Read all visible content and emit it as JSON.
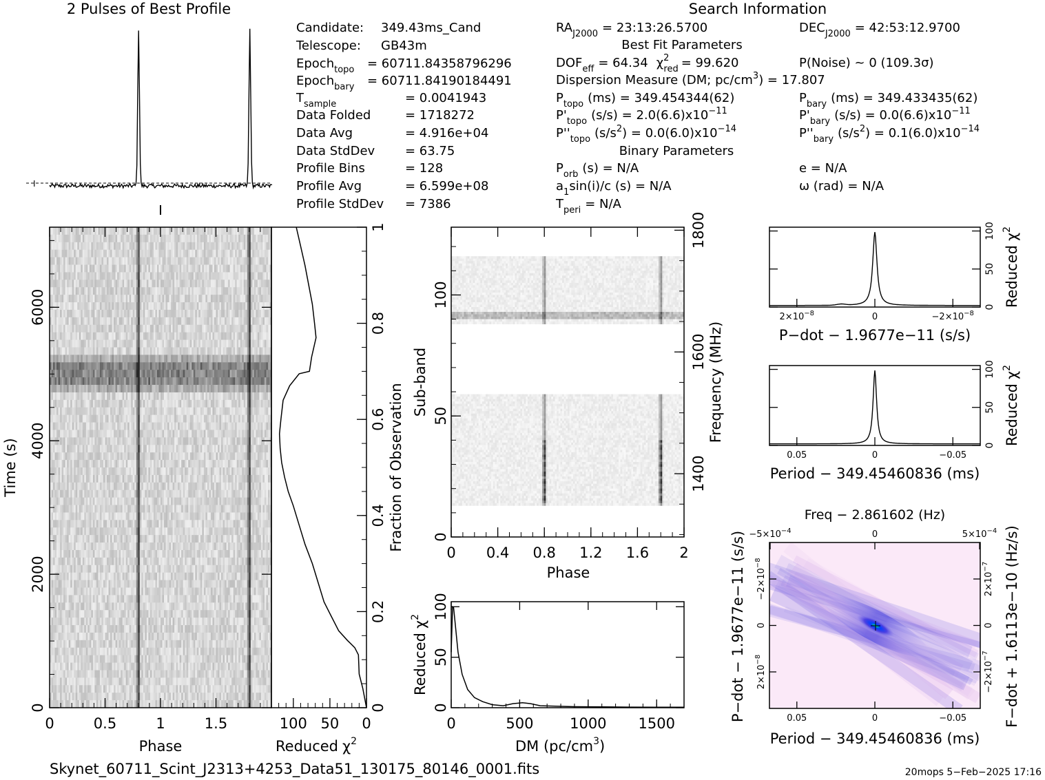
{
  "title": "2 Pulses of Best Profile",
  "search_info": {
    "heading": "Search Information",
    "candidate_label": "Candidate:",
    "candidate": "349.43ms_Cand",
    "telescope_label": "Telescope:",
    "telescope": "GB43m",
    "epoch_topo_label": "Epoch",
    "epoch_topo_sub": "topo",
    "epoch_topo": "= 60711.84358796296",
    "epoch_bary_label": "Epoch",
    "epoch_bary_sub": "bary",
    "epoch_bary": "= 60711.84190184491",
    "tsample_label": "T",
    "tsample_sub": "sample",
    "tsample": "=   0.0041943",
    "folded_label": "Data Folded",
    "folded": "=   1718272",
    "avg_label": "Data Avg",
    "avg": "=   4.916e+04",
    "std_label": "Data StdDev",
    "std": "=   63.75",
    "bins_label": "Profile Bins",
    "bins": "=   128",
    "pavg_label": "Profile Avg",
    "pavg": "=   6.599e+08",
    "pstd_label": "Profile StdDev",
    "pstd": "=   7386",
    "ra_label": "RA",
    "ra_sub": "J2000",
    "ra": "= 23:13:26.5700",
    "dec_label": "DEC",
    "dec_sub": "J2000",
    "dec": "= 42:53:12.9700",
    "bestfit_heading": "Best Fit Parameters",
    "dof_label": "DOF",
    "dof_sub": "eff",
    "dof": "= 64.34",
    "chi_label": "χ",
    "chi_sup": "2",
    "chi_sub": "red",
    "chi": "= 99.620",
    "pnoise": "P(Noise) ~ 0    (109.3σ)",
    "dm_line": "Dispersion Measure (DM; pc/cm",
    "dm_sup": "3",
    "dm_val": ") = 17.807",
    "ptopo_label": "P",
    "ptopo_sub": "topo",
    "ptopo": "(ms) =  349.454344(62)",
    "pbary_label": "P",
    "pbary_sub": "bary",
    "pbary": "(ms) =  349.433435(62)",
    "pdtopo_label": "P'",
    "pdtopo_sub": "topo",
    "pdtopo": "(s/s) =  2.0(6.6)x10",
    "pdtopo_exp": "−11",
    "pdbary_label": "P'",
    "pdbary_sub": "bary",
    "pdbary": "(s/s) = 0.0(6.6)x10",
    "pdbary_exp": "−11",
    "pddtopo_label": "P''",
    "pddtopo_sub": "topo",
    "pddtopo": "(s/s",
    "pddtopo_sup": "2",
    "pddtopo_val": ") = 0.0(6.0)x10",
    "pddtopo_exp": "−14",
    "pddbary_label": "P''",
    "pddbary_sub": "bary",
    "pddbary": "(s/s",
    "pddbary_sup": "2",
    "pddbary_val": ") =  0.1(6.0)x10",
    "pddbary_exp": "−14",
    "binary_heading": "Binary Parameters",
    "porb_label": "P",
    "porb_sub": "orb",
    "porb": "(s) = N/A",
    "e_line": "e = N/A",
    "a1_label": "a",
    "a1_sub": "1",
    "a1": "sin(i)/c (s) = N/A",
    "omega_line": "ω (rad) = N/A",
    "tperi_label": "T",
    "tperi_sub": "peri",
    "tperi": "= N/A"
  },
  "footer": {
    "filename": "Skynet_60711_Scint_J2313+4253_Data51_130175_80146_0001.fits",
    "stamp": "20mops   5−Feb−2025 17:16"
  },
  "chart_data": [
    {
      "name": "profile",
      "type": "line",
      "description": "Two cycles of folded pulse profile, narrow pulse near phase 0.8 and 1.8",
      "x_range": [
        0,
        2
      ],
      "pulse_phases": [
        0.8,
        1.8
      ],
      "peak_relative": 1.0,
      "baseline_relative": 0.0
    },
    {
      "name": "time-phase",
      "type": "heatmap",
      "xlabel": "Phase",
      "ylabel": "Time (s)",
      "x_ticks": [
        "0",
        "0.5",
        "1",
        "1.5"
      ],
      "y_ticks": [
        "0",
        "2000",
        "4000",
        "6000"
      ],
      "xlim": [
        0,
        2
      ],
      "ylim": [
        0,
        7200
      ],
      "pulse_phases": [
        0.8,
        1.8
      ],
      "bright_time_s": 5000
    },
    {
      "name": "reduced-chi2-vs-time",
      "type": "line",
      "xlabel": "Reduced",
      "xlabel_chi": "χ",
      "xlabel_sup": "2",
      "ylabel": "Fraction of Observation",
      "x_ticks": [
        "100",
        "50",
        "0"
      ],
      "y_ticks": [
        "0",
        "0.2",
        "0.4",
        "0.6",
        "0.8",
        "1"
      ],
      "xlim": [
        130,
        0
      ],
      "ylim": [
        0,
        1
      ],
      "points": [
        [
          0,
          0
        ],
        [
          5,
          0.04
        ],
        [
          10,
          0.07
        ],
        [
          11,
          0.11
        ],
        [
          16,
          0.125
        ],
        [
          26,
          0.14
        ],
        [
          38,
          0.16
        ],
        [
          48,
          0.19
        ],
        [
          58,
          0.22
        ],
        [
          66,
          0.26
        ],
        [
          74,
          0.3
        ],
        [
          84,
          0.34
        ],
        [
          92,
          0.38
        ],
        [
          100,
          0.42
        ],
        [
          107,
          0.45
        ],
        [
          112,
          0.48
        ],
        [
          116,
          0.51
        ],
        [
          118,
          0.54
        ],
        [
          119,
          0.57
        ],
        [
          117,
          0.6
        ],
        [
          114,
          0.64
        ],
        [
          105,
          0.67
        ],
        [
          92,
          0.695
        ],
        [
          78,
          0.7
        ],
        [
          75,
          0.73
        ],
        [
          69,
          0.77
        ],
        [
          71,
          0.8
        ],
        [
          74,
          0.84
        ],
        [
          79,
          0.88
        ],
        [
          84,
          0.92
        ],
        [
          90,
          0.96
        ],
        [
          96,
          1.0
        ]
      ]
    },
    {
      "name": "subband-phase",
      "type": "heatmap",
      "xlabel": "Phase",
      "ylabel": "Sub-band",
      "y2label": "Frequency (MHz)",
      "x_ticks": [
        "0",
        "0.4",
        "0.8",
        "1.2",
        "1.6",
        "2"
      ],
      "y_ticks": [
        "0",
        "50",
        "100"
      ],
      "y2_ticks": [
        "1400",
        "1600",
        "1800"
      ],
      "xlim": [
        0,
        2
      ],
      "ylim": [
        0,
        128
      ],
      "y2lim": [
        1296,
        1805
      ],
      "pulse_phases": [
        0.8,
        1.8
      ],
      "empty_bands": [
        [
          0,
          13
        ],
        [
          59,
          88
        ],
        [
          116,
          128
        ]
      ]
    },
    {
      "name": "dm-curve",
      "type": "line",
      "xlabel": "DM (pc/cm",
      "xlabel_sup": "3",
      "xlabel_end": ")",
      "ylabel": "Reduced",
      "ylabel_chi": "χ",
      "ylabel_sup": "2",
      "x_ticks": [
        "0",
        "500",
        "1000",
        "1500"
      ],
      "y_ticks": [
        "0",
        "50",
        "100"
      ],
      "xlim": [
        0,
        1700
      ],
      "ylim": [
        0,
        105
      ],
      "points": [
        [
          0,
          55
        ],
        [
          10,
          100
        ],
        [
          17,
          99.6
        ],
        [
          30,
          82
        ],
        [
          50,
          55
        ],
        [
          80,
          33
        ],
        [
          120,
          18
        ],
        [
          170,
          10
        ],
        [
          230,
          6
        ],
        [
          300,
          3
        ],
        [
          380,
          2
        ],
        [
          450,
          4
        ],
        [
          520,
          5
        ],
        [
          580,
          4
        ],
        [
          650,
          2
        ],
        [
          760,
          1.5
        ],
        [
          900,
          1
        ],
        [
          1100,
          0.8
        ],
        [
          1300,
          0.6
        ],
        [
          1500,
          0.5
        ],
        [
          1700,
          0.5
        ]
      ]
    },
    {
      "name": "pdot-curve",
      "type": "line",
      "xlabel": "P−dot − 1.9677e−11 (s/s)",
      "ylabel": "Reduced",
      "ylabel_chi": "χ",
      "ylabel_sup": "2",
      "x_ticks": [
        "2×10",
        "0",
        "−2×10"
      ],
      "x_tick_exp": "−8",
      "y_ticks": [
        "0",
        "50",
        "100"
      ],
      "peak_value": 99.6
    },
    {
      "name": "period-curve",
      "type": "line",
      "xlabel": "Period − 349.45460836 (ms)",
      "ylabel": "Reduced",
      "ylabel_chi": "χ",
      "ylabel_sup": "2",
      "x_ticks": [
        "0.05",
        "0",
        "−0.05"
      ],
      "y_ticks": [
        "0",
        "50",
        "100"
      ],
      "peak_value": 99.6
    },
    {
      "name": "p-pdot-plane",
      "type": "heatmap",
      "title": "Freq − 2.861602 (Hz)",
      "xlabel": "Period − 349.45460836 (ms)",
      "ylabel": "P−dot − 1.9677e−11 (s/s)",
      "y2label": "F−dot + 1.6113e−10 (Hz/s)",
      "x_ticks": [
        "0.05",
        "0",
        "−0.05"
      ],
      "top_ticks": [
        "−5×10",
        "0",
        "5×10"
      ],
      "top_tick_exp": "−4",
      "y_ticks": [
        "−2×10",
        "0",
        "2×10"
      ],
      "y_tick_exp": "−8",
      "y2_ticks": [
        "2×10",
        "0",
        "−2×10"
      ],
      "y2_tick_exp": "−7",
      "colors": [
        "#ffffff",
        "#f2c6ee",
        "#9b8fe6",
        "#1f1fd8",
        "#00ff66"
      ]
    }
  ]
}
